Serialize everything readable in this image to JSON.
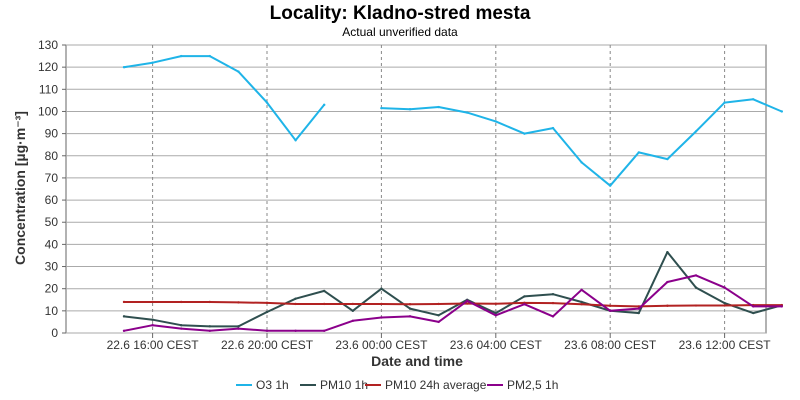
{
  "chart_data": {
    "type": "line",
    "title": "Locality: Kladno-stred mesta",
    "subtitle": "Actual unverified data",
    "xlabel": "Date and time",
    "ylabel": "Concentration [µg·m⁻³]",
    "ylim": [
      0,
      130
    ],
    "yticks": [
      0,
      10,
      20,
      30,
      40,
      50,
      60,
      70,
      80,
      90,
      100,
      110,
      120,
      130
    ],
    "x_hours": [
      0,
      1,
      2,
      3,
      4,
      5,
      6,
      7,
      8,
      9,
      10,
      11,
      12,
      13,
      14,
      15,
      16,
      17,
      18,
      19,
      20,
      21,
      22,
      23,
      24
    ],
    "x_start": "22.6 15:00 CEST",
    "xticks": [
      {
        "hour": 1,
        "label": "22.6 16:00 CEST"
      },
      {
        "hour": 5,
        "label": "22.6 20:00 CEST"
      },
      {
        "hour": 9,
        "label": "23.6 00:00 CEST"
      },
      {
        "hour": 13,
        "label": "23.6 04:00 CEST"
      },
      {
        "hour": 17,
        "label": "23.6 08:00 CEST"
      },
      {
        "hour": 21,
        "label": "23.6 12:00 CEST"
      }
    ],
    "grid": {
      "vertical": "dashed",
      "horizontal": "solid"
    },
    "legend_position": "bottom",
    "series": [
      {
        "name": "O3 1h",
        "color": "#1fb4e8",
        "values": [
          120,
          122,
          125,
          125,
          118,
          104,
          87,
          103,
          null,
          101.5,
          101,
          102,
          99.5,
          95.5,
          90,
          92.5,
          77,
          66.5,
          81.5,
          78.5,
          91,
          104,
          105.5,
          100,
          null
        ]
      },
      {
        "name": "PM10 1h",
        "color": "#2f4f4f",
        "values": [
          7.5,
          6,
          3.5,
          3,
          3,
          9.5,
          15.5,
          19,
          10,
          20,
          11,
          8,
          15,
          9,
          16.5,
          17.5,
          14,
          10,
          9,
          36.5,
          20.5,
          13.5,
          9,
          12.5,
          null
        ]
      },
      {
        "name": "PM10 24h average",
        "color": "#b22222",
        "values": [
          14,
          14,
          14,
          14,
          13.8,
          13.6,
          13.1,
          13.1,
          13.1,
          13.1,
          13,
          13.1,
          13.3,
          13.2,
          13.6,
          13.5,
          13,
          12.3,
          12,
          12.3,
          12.4,
          12.4,
          12.6,
          12.6,
          null
        ]
      },
      {
        "name": "PM2,5 1h",
        "color": "#8b008b",
        "values": [
          1,
          3.5,
          2,
          1,
          2,
          1,
          1,
          1,
          5.5,
          7,
          7.5,
          5,
          14.5,
          8,
          13,
          7.5,
          19.5,
          10,
          11,
          23,
          26,
          20.5,
          12,
          12,
          null
        ]
      }
    ]
  }
}
